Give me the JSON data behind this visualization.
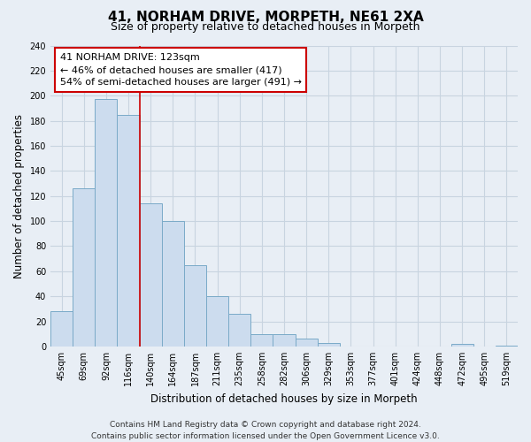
{
  "title": "41, NORHAM DRIVE, MORPETH, NE61 2XA",
  "subtitle": "Size of property relative to detached houses in Morpeth",
  "xlabel": "Distribution of detached houses by size in Morpeth",
  "ylabel": "Number of detached properties",
  "categories": [
    "45sqm",
    "69sqm",
    "92sqm",
    "116sqm",
    "140sqm",
    "164sqm",
    "187sqm",
    "211sqm",
    "235sqm",
    "258sqm",
    "282sqm",
    "306sqm",
    "329sqm",
    "353sqm",
    "377sqm",
    "401sqm",
    "424sqm",
    "448sqm",
    "472sqm",
    "495sqm",
    "519sqm"
  ],
  "values": [
    28,
    126,
    197,
    185,
    114,
    100,
    65,
    40,
    26,
    10,
    10,
    6,
    3,
    0,
    0,
    0,
    0,
    0,
    2,
    0,
    1
  ],
  "bar_color": "#ccdcee",
  "bar_edge_color": "#7aaac8",
  "vline_x": 3.5,
  "vline_color": "#cc0000",
  "annotation_title": "41 NORHAM DRIVE: 123sqm",
  "annotation_line1": "← 46% of detached houses are smaller (417)",
  "annotation_line2": "54% of semi-detached houses are larger (491) →",
  "annotation_box_color": "#ffffff",
  "annotation_box_edge": "#cc0000",
  "ylim": [
    0,
    240
  ],
  "yticks": [
    0,
    20,
    40,
    60,
    80,
    100,
    120,
    140,
    160,
    180,
    200,
    220,
    240
  ],
  "footer_line1": "Contains HM Land Registry data © Crown copyright and database right 2024.",
  "footer_line2": "Contains public sector information licensed under the Open Government Licence v3.0.",
  "background_color": "#e8eef5",
  "plot_bg_color": "#e8eef5",
  "grid_color": "#c8d4e0",
  "title_fontsize": 11,
  "subtitle_fontsize": 9,
  "axis_label_fontsize": 8.5,
  "tick_fontsize": 7,
  "annotation_fontsize": 8,
  "footer_fontsize": 6.5
}
